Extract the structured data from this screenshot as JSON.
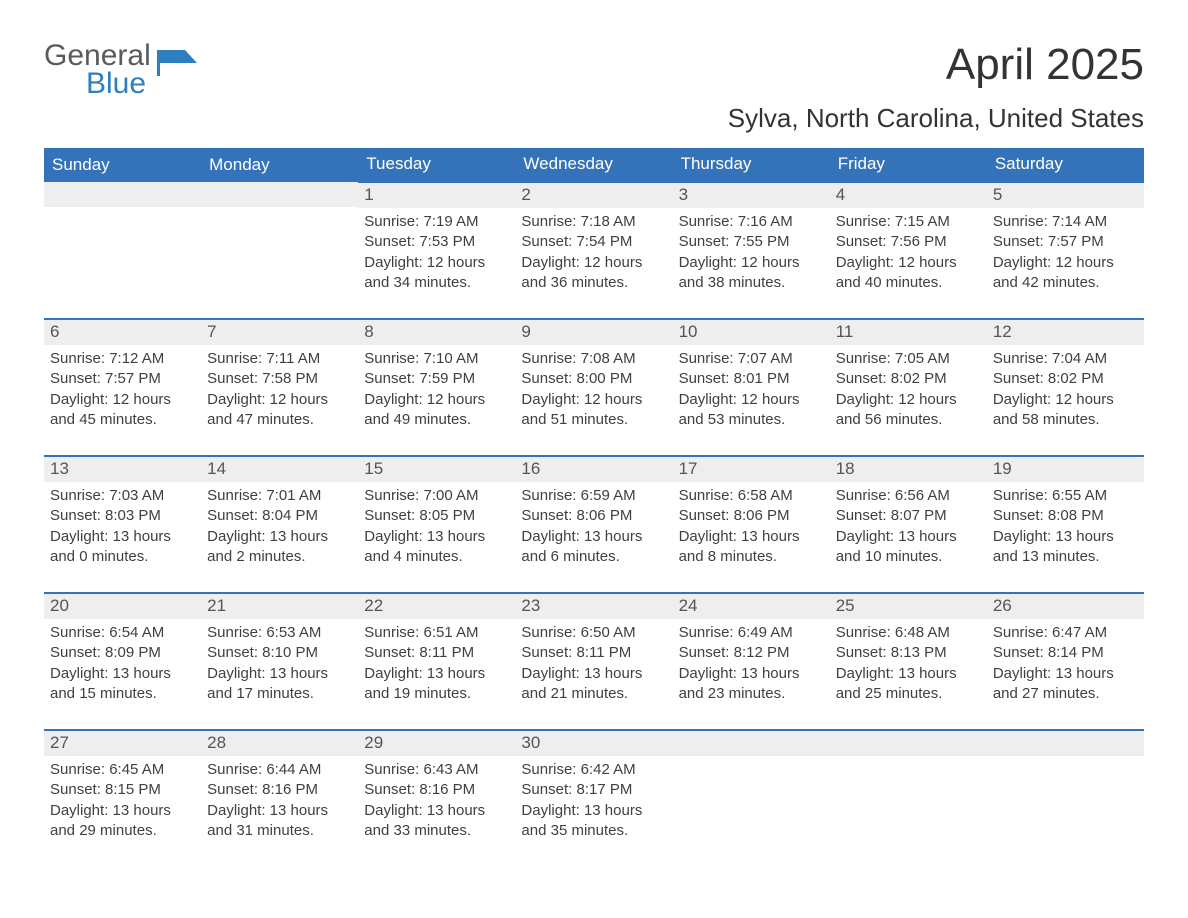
{
  "logo": {
    "word1": "General",
    "word2": "Blue",
    "flag_color": "#2e7fbf"
  },
  "title": "April 2025",
  "location": "Sylva, North Carolina, United States",
  "colors": {
    "header_bg": "#3473b9",
    "header_text": "#ffffff",
    "row_border": "#3473b9",
    "daynum_bg": "#eeeeee",
    "body_text": "#404040",
    "page_bg": "#ffffff"
  },
  "day_labels": [
    "Sunday",
    "Monday",
    "Tuesday",
    "Wednesday",
    "Thursday",
    "Friday",
    "Saturday"
  ],
  "weeks": [
    [
      {
        "empty": true
      },
      {
        "empty": true
      },
      {
        "num": "1",
        "sunrise": "7:19 AM",
        "sunset": "7:53 PM",
        "daylight": "12 hours and 34 minutes."
      },
      {
        "num": "2",
        "sunrise": "7:18 AM",
        "sunset": "7:54 PM",
        "daylight": "12 hours and 36 minutes."
      },
      {
        "num": "3",
        "sunrise": "7:16 AM",
        "sunset": "7:55 PM",
        "daylight": "12 hours and 38 minutes."
      },
      {
        "num": "4",
        "sunrise": "7:15 AM",
        "sunset": "7:56 PM",
        "daylight": "12 hours and 40 minutes."
      },
      {
        "num": "5",
        "sunrise": "7:14 AM",
        "sunset": "7:57 PM",
        "daylight": "12 hours and 42 minutes."
      }
    ],
    [
      {
        "num": "6",
        "sunrise": "7:12 AM",
        "sunset": "7:57 PM",
        "daylight": "12 hours and 45 minutes."
      },
      {
        "num": "7",
        "sunrise": "7:11 AM",
        "sunset": "7:58 PM",
        "daylight": "12 hours and 47 minutes."
      },
      {
        "num": "8",
        "sunrise": "7:10 AM",
        "sunset": "7:59 PM",
        "daylight": "12 hours and 49 minutes."
      },
      {
        "num": "9",
        "sunrise": "7:08 AM",
        "sunset": "8:00 PM",
        "daylight": "12 hours and 51 minutes."
      },
      {
        "num": "10",
        "sunrise": "7:07 AM",
        "sunset": "8:01 PM",
        "daylight": "12 hours and 53 minutes."
      },
      {
        "num": "11",
        "sunrise": "7:05 AM",
        "sunset": "8:02 PM",
        "daylight": "12 hours and 56 minutes."
      },
      {
        "num": "12",
        "sunrise": "7:04 AM",
        "sunset": "8:02 PM",
        "daylight": "12 hours and 58 minutes."
      }
    ],
    [
      {
        "num": "13",
        "sunrise": "7:03 AM",
        "sunset": "8:03 PM",
        "daylight": "13 hours and 0 minutes."
      },
      {
        "num": "14",
        "sunrise": "7:01 AM",
        "sunset": "8:04 PM",
        "daylight": "13 hours and 2 minutes."
      },
      {
        "num": "15",
        "sunrise": "7:00 AM",
        "sunset": "8:05 PM",
        "daylight": "13 hours and 4 minutes."
      },
      {
        "num": "16",
        "sunrise": "6:59 AM",
        "sunset": "8:06 PM",
        "daylight": "13 hours and 6 minutes."
      },
      {
        "num": "17",
        "sunrise": "6:58 AM",
        "sunset": "8:06 PM",
        "daylight": "13 hours and 8 minutes."
      },
      {
        "num": "18",
        "sunrise": "6:56 AM",
        "sunset": "8:07 PM",
        "daylight": "13 hours and 10 minutes."
      },
      {
        "num": "19",
        "sunrise": "6:55 AM",
        "sunset": "8:08 PM",
        "daylight": "13 hours and 13 minutes."
      }
    ],
    [
      {
        "num": "20",
        "sunrise": "6:54 AM",
        "sunset": "8:09 PM",
        "daylight": "13 hours and 15 minutes."
      },
      {
        "num": "21",
        "sunrise": "6:53 AM",
        "sunset": "8:10 PM",
        "daylight": "13 hours and 17 minutes."
      },
      {
        "num": "22",
        "sunrise": "6:51 AM",
        "sunset": "8:11 PM",
        "daylight": "13 hours and 19 minutes."
      },
      {
        "num": "23",
        "sunrise": "6:50 AM",
        "sunset": "8:11 PM",
        "daylight": "13 hours and 21 minutes."
      },
      {
        "num": "24",
        "sunrise": "6:49 AM",
        "sunset": "8:12 PM",
        "daylight": "13 hours and 23 minutes."
      },
      {
        "num": "25",
        "sunrise": "6:48 AM",
        "sunset": "8:13 PM",
        "daylight": "13 hours and 25 minutes."
      },
      {
        "num": "26",
        "sunrise": "6:47 AM",
        "sunset": "8:14 PM",
        "daylight": "13 hours and 27 minutes."
      }
    ],
    [
      {
        "num": "27",
        "sunrise": "6:45 AM",
        "sunset": "8:15 PM",
        "daylight": "13 hours and 29 minutes."
      },
      {
        "num": "28",
        "sunrise": "6:44 AM",
        "sunset": "8:16 PM",
        "daylight": "13 hours and 31 minutes."
      },
      {
        "num": "29",
        "sunrise": "6:43 AM",
        "sunset": "8:16 PM",
        "daylight": "13 hours and 33 minutes."
      },
      {
        "num": "30",
        "sunrise": "6:42 AM",
        "sunset": "8:17 PM",
        "daylight": "13 hours and 35 minutes."
      },
      {
        "empty": true
      },
      {
        "empty": true
      },
      {
        "empty": true
      }
    ]
  ],
  "labels": {
    "sunrise": "Sunrise: ",
    "sunset": "Sunset: ",
    "daylight": "Daylight: "
  }
}
